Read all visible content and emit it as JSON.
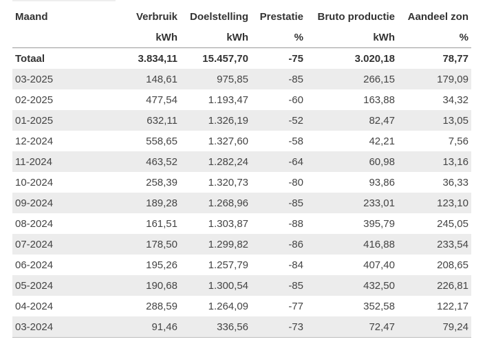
{
  "headers": {
    "labels": [
      "Maand",
      "Verbruik",
      "Doelstelling",
      "Prestatie",
      "Bruto productie",
      "Aandeel zon"
    ],
    "units": [
      "",
      "kWh",
      "kWh",
      "%",
      "kWh",
      "%"
    ]
  },
  "total": [
    "Totaal",
    "3.834,11",
    "15.457,70",
    "-75",
    "3.020,18",
    "78,77"
  ],
  "rows": [
    [
      "03-2025",
      "148,61",
      "975,85",
      "-85",
      "266,15",
      "179,09"
    ],
    [
      "02-2025",
      "477,54",
      "1.193,47",
      "-60",
      "163,88",
      "34,32"
    ],
    [
      "01-2025",
      "632,11",
      "1.326,19",
      "-52",
      "82,47",
      "13,05"
    ],
    [
      "12-2024",
      "558,65",
      "1.327,60",
      "-58",
      "42,21",
      "7,56"
    ],
    [
      "11-2024",
      "463,52",
      "1.282,24",
      "-64",
      "60,98",
      "13,16"
    ],
    [
      "10-2024",
      "258,39",
      "1.320,73",
      "-80",
      "93,86",
      "36,33"
    ],
    [
      "09-2024",
      "189,28",
      "1.268,96",
      "-85",
      "233,01",
      "123,10"
    ],
    [
      "08-2024",
      "161,51",
      "1.303,87",
      "-88",
      "395,79",
      "245,05"
    ],
    [
      "07-2024",
      "178,50",
      "1.299,82",
      "-86",
      "416,88",
      "233,54"
    ],
    [
      "06-2024",
      "195,26",
      "1.257,79",
      "-84",
      "407,40",
      "208,65"
    ],
    [
      "05-2024",
      "190,68",
      "1.300,54",
      "-85",
      "432,50",
      "226,81"
    ],
    [
      "04-2024",
      "288,59",
      "1.264,09",
      "-77",
      "352,58",
      "122,17"
    ],
    [
      "03-2024",
      "91,46",
      "336,56",
      "-73",
      "72,47",
      "79,24"
    ]
  ],
  "colors": {
    "stripe": "#ececec",
    "header_rule": "#999999",
    "text": "#333333"
  }
}
